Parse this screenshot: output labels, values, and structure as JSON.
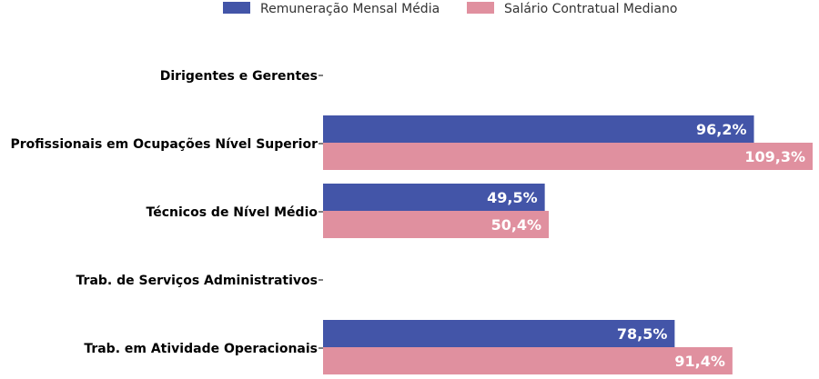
{
  "chart_data": {
    "type": "bar",
    "orientation": "horizontal",
    "title": "",
    "xlabel": "",
    "ylabel": "",
    "xlim": [
      0,
      110
    ],
    "grid": false,
    "legend_position": "top-center",
    "categories": [
      "Dirigentes e Gerentes",
      "Profissionais em Ocupações Nível Superior",
      "Técnicos de Nível Médio",
      "Trab. de Serviços Administrativos",
      "Trab. em Atividade Operacionais"
    ],
    "series": [
      {
        "name": "Remuneração Mensal Média",
        "color": "#4355a8",
        "values": [
          null,
          96.2,
          49.5,
          null,
          78.5
        ],
        "labels": [
          "",
          "96,2%",
          "49,5%",
          "",
          "78,5%"
        ]
      },
      {
        "name": "Salário Contratual Mediano",
        "color": "#e0909f",
        "values": [
          null,
          109.3,
          50.4,
          null,
          91.4
        ],
        "labels": [
          "",
          "109,3%",
          "50,4%",
          "",
          "91,4%"
        ]
      }
    ]
  }
}
